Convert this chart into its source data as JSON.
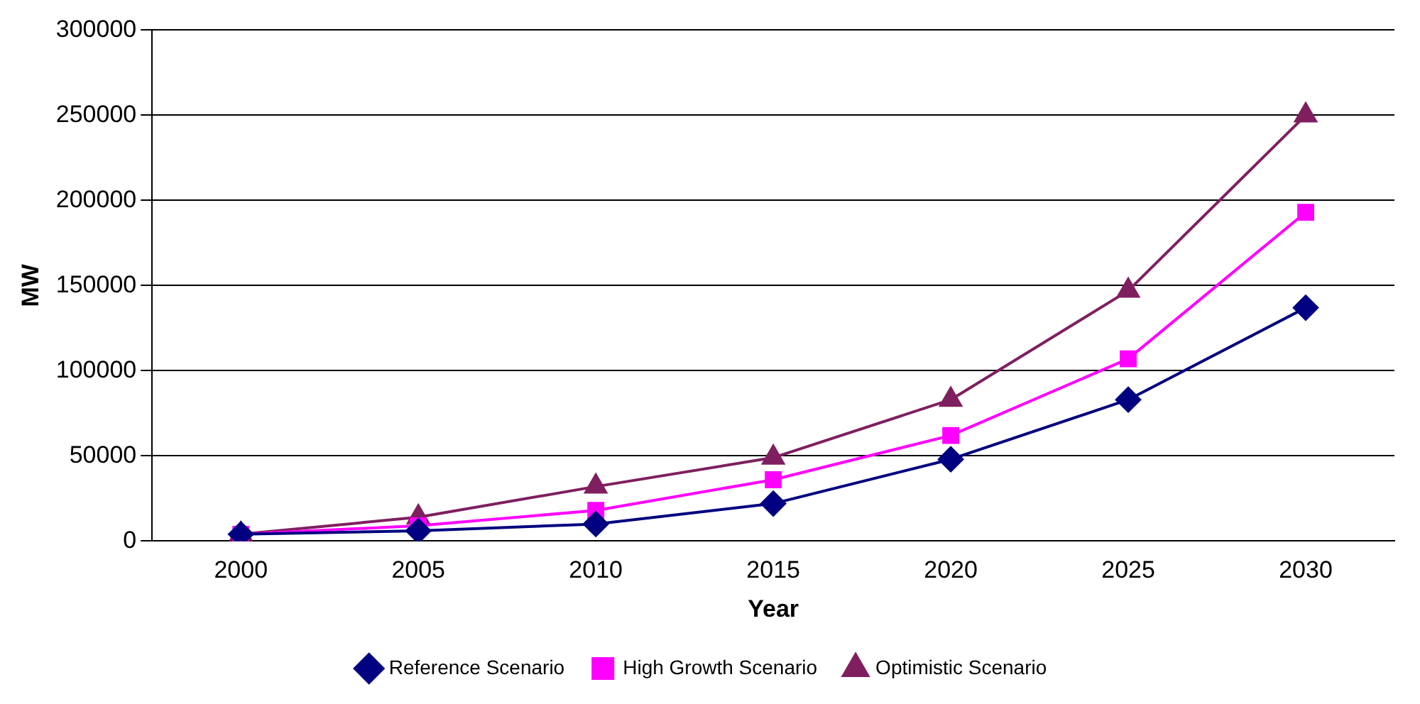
{
  "chart_data": {
    "type": "line",
    "xlabel": "Year",
    "ylabel": "MW",
    "categories": [
      "2000",
      "2005",
      "2010",
      "2015",
      "2020",
      "2025",
      "2030"
    ],
    "series": [
      {
        "name": "Reference Scenario",
        "color": "#000080",
        "marker": "diamond",
        "values": [
          4000,
          6000,
          10000,
          22000,
          48000,
          83000,
          137000
        ]
      },
      {
        "name": "High Growth Scenario",
        "color": "#ff00ff",
        "marker": "square",
        "values": [
          4000,
          9000,
          18000,
          36000,
          62000,
          107000,
          193000
        ]
      },
      {
        "name": "Optimistic Scenario",
        "color": "#7f1f5f",
        "marker": "triangle",
        "values": [
          4000,
          14000,
          32000,
          49000,
          83000,
          147000,
          250000
        ]
      }
    ],
    "ylim": [
      0,
      300000
    ],
    "yticks": [
      0,
      50000,
      100000,
      150000,
      200000,
      250000,
      300000
    ],
    "grid": "y",
    "legend": "bottom"
  }
}
